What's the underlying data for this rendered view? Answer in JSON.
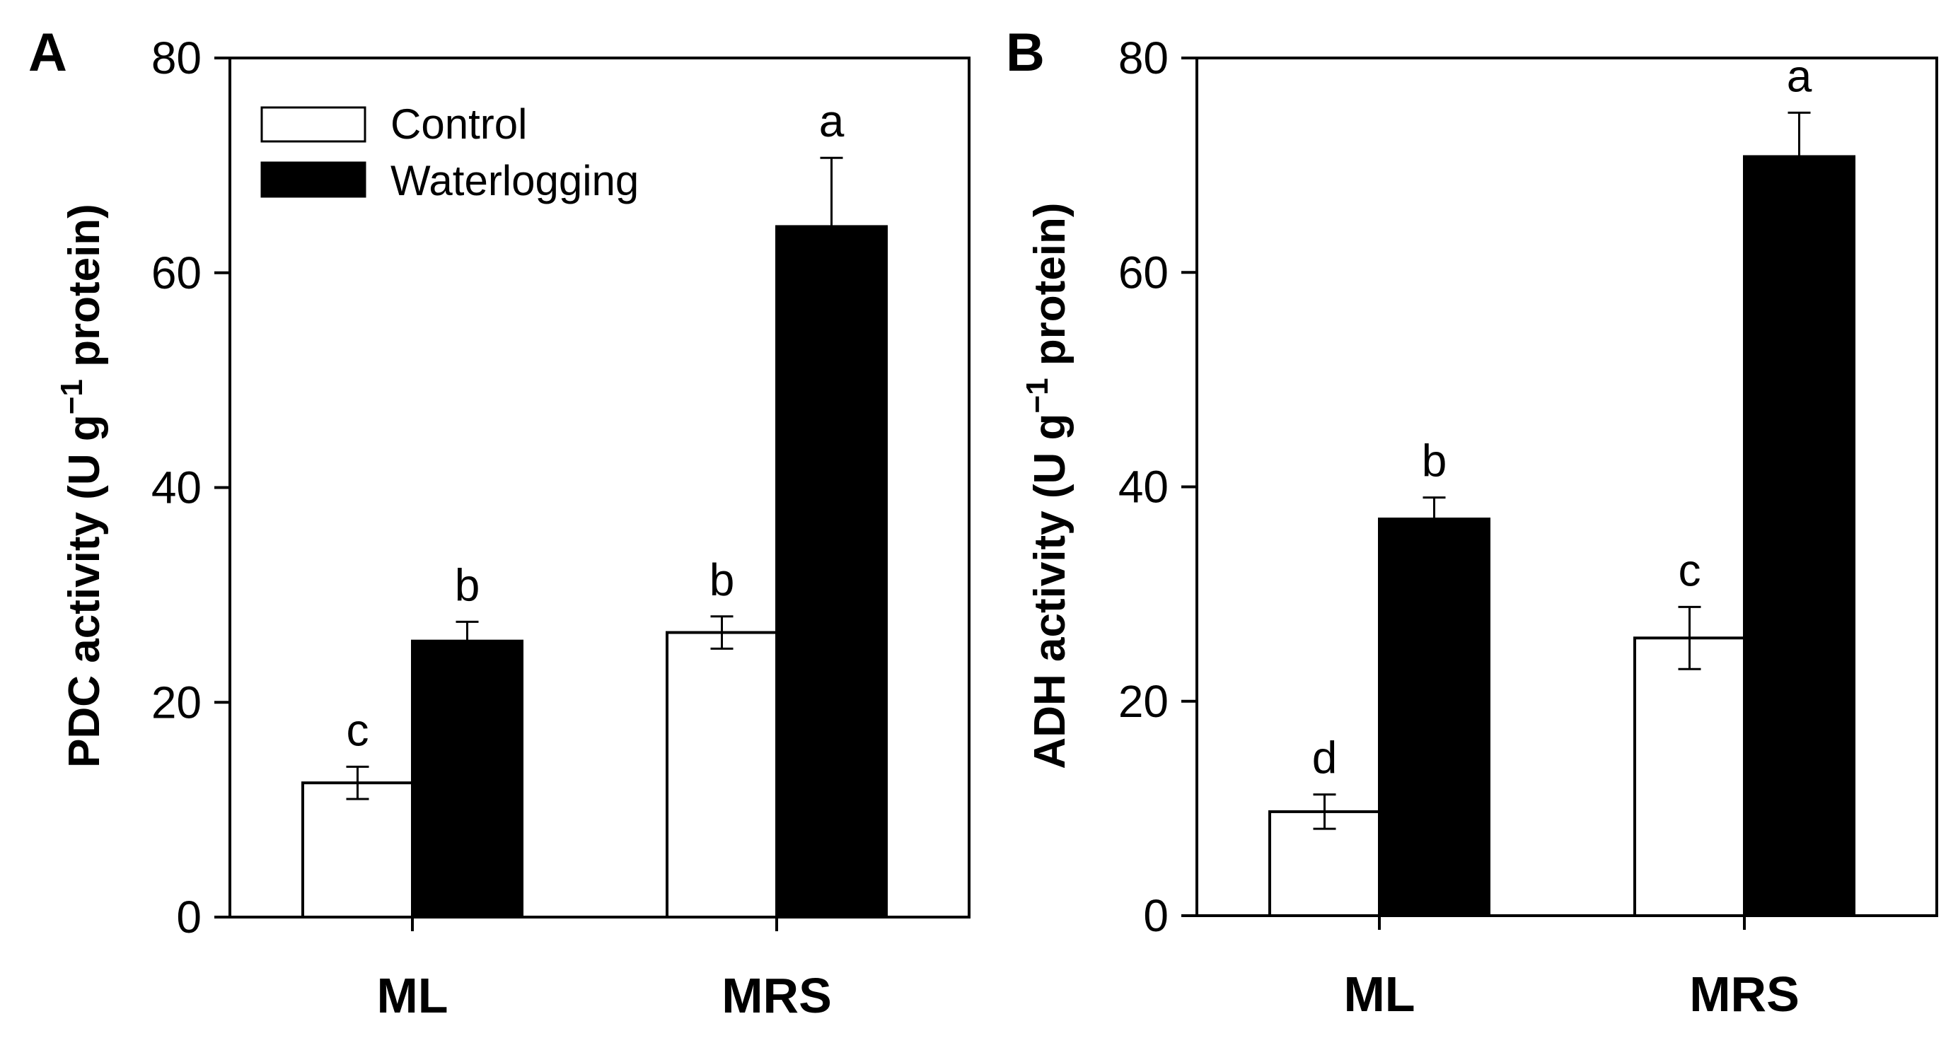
{
  "legend": {
    "control": "Control",
    "waterlogging": "Waterlogging"
  },
  "colors": {
    "control_fill": "#ffffff",
    "waterlogging_fill": "#000000",
    "axis": "#000000"
  },
  "chart_data": [
    {
      "type": "bar",
      "panel_label": "A",
      "ylabel": {
        "prefix": "PDC activity (U g",
        "superscript": "−1",
        "suffix": " protein)"
      },
      "categories": [
        "ML",
        "MRS"
      ],
      "ylim": [
        0,
        80
      ],
      "yticks": [
        "0",
        "20",
        "40",
        "60",
        "80"
      ],
      "series": [
        {
          "name": "Control",
          "values": [
            12.5,
            26.5
          ],
          "errors": [
            1.5,
            1.5
          ],
          "letters": [
            "c",
            "b"
          ]
        },
        {
          "name": "Waterlogging",
          "values": [
            25.7,
            64.3
          ],
          "errors": [
            1.8,
            6.4
          ],
          "letters": [
            "b",
            "a"
          ]
        }
      ],
      "legend_position": "top-left"
    },
    {
      "type": "bar",
      "panel_label": "B",
      "ylabel": {
        "prefix": "ADH activity (U g",
        "superscript": "−1",
        "suffix": " protein)"
      },
      "categories": [
        "ML",
        "MRS"
      ],
      "ylim": [
        0,
        80
      ],
      "yticks": [
        "0",
        "20",
        "40",
        "60",
        "80"
      ],
      "series": [
        {
          "name": "Control",
          "values": [
            9.7,
            25.9
          ],
          "errors": [
            1.6,
            2.9
          ],
          "letters": [
            "d",
            "c"
          ]
        },
        {
          "name": "Waterlogging",
          "values": [
            37.0,
            70.8
          ],
          "errors": [
            2.0,
            4.1
          ],
          "letters": [
            "b",
            "a"
          ]
        }
      ]
    }
  ]
}
